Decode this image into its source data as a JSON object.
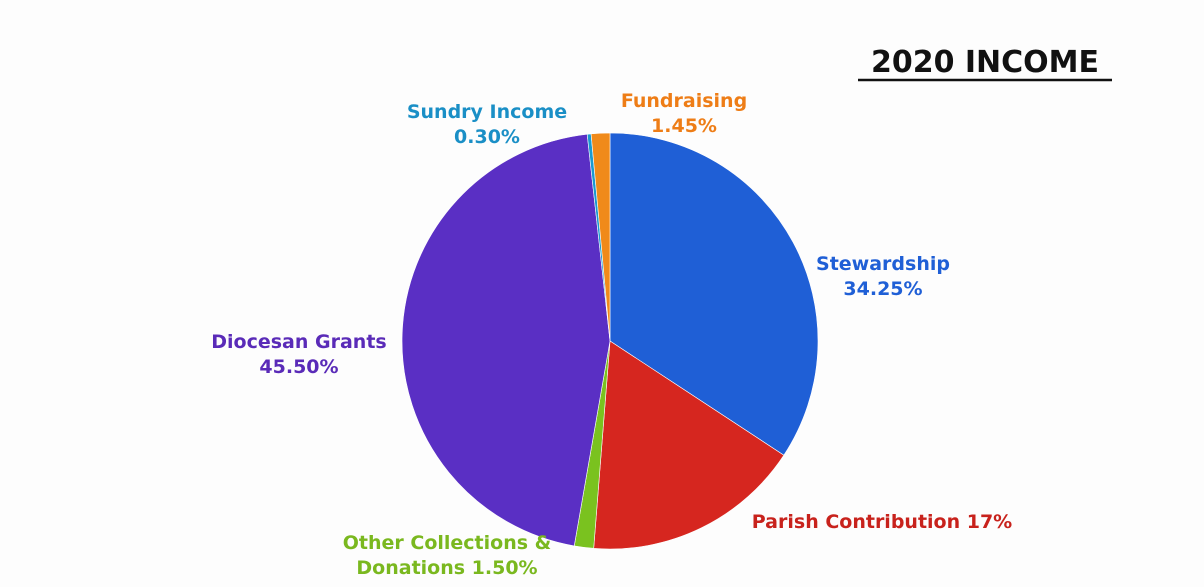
{
  "chart_data": {
    "type": "pie",
    "title": "2020 INCOME",
    "slices": [
      {
        "label_lines": [
          "Stewardship",
          "34.25%"
        ],
        "value": 34.25,
        "color": "#1f5fd6",
        "label_color": "#1f5fd6"
      },
      {
        "label_lines": [
          "Parish Contribution 17%"
        ],
        "value": 17.0,
        "color": "#d6261f",
        "label_color": "#c8221c"
      },
      {
        "label_lines": [
          "Other Collections &",
          "Donations 1.50%"
        ],
        "value": 1.5,
        "color": "#7ac21f",
        "label_color": "#7ab81f"
      },
      {
        "label_lines": [
          "Diocesan Grants",
          "45.50%"
        ],
        "value": 45.5,
        "color": "#5a2fc4",
        "label_color": "#5a2bb8"
      },
      {
        "label_lines": [
          "Sundry Income",
          "0.30%"
        ],
        "value": 0.3,
        "color": "#1a9ad0",
        "label_color": "#1a8fc6"
      },
      {
        "label_lines": [
          "Fundraising",
          "1.45%"
        ],
        "value": 1.45,
        "color": "#f08a1a",
        "label_color": "#ee7d16"
      }
    ],
    "start": "12 o'clock",
    "direction": "clockwise",
    "legend": "none"
  }
}
